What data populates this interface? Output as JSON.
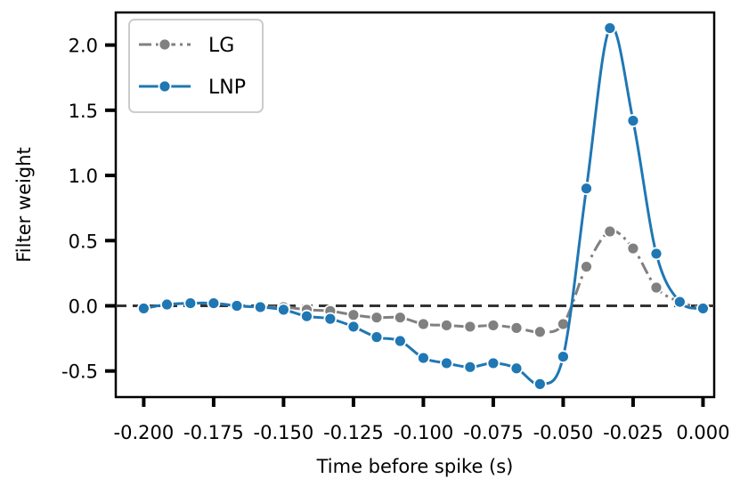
{
  "chart_data": {
    "type": "line",
    "title": "",
    "xlabel": "Time before spike (s)",
    "ylabel": "Filter weight",
    "xlim": [
      -0.21,
      0.004
    ],
    "ylim": [
      -0.7,
      2.25
    ],
    "xticks": [
      -0.2,
      -0.175,
      -0.15,
      -0.125,
      -0.1,
      -0.075,
      -0.05,
      -0.025,
      0.0
    ],
    "xtick_labels": [
      "-0.200",
      "-0.175",
      "-0.150",
      "-0.125",
      "-0.100",
      "-0.075",
      "-0.050",
      "-0.025",
      "0.000"
    ],
    "yticks": [
      -0.5,
      0.0,
      0.5,
      1.0,
      1.5,
      2.0
    ],
    "ytick_labels": [
      "-0.5",
      "0.0",
      "0.5",
      "1.0",
      "1.5",
      "2.0"
    ],
    "legend_position": "top-left",
    "zero_line": true,
    "x": [
      -0.2,
      -0.1917,
      -0.1833,
      -0.175,
      -0.1667,
      -0.1583,
      -0.15,
      -0.1417,
      -0.1333,
      -0.125,
      -0.1167,
      -0.1083,
      -0.1,
      -0.0917,
      -0.0833,
      -0.075,
      -0.0667,
      -0.0583,
      -0.05,
      -0.0417,
      -0.0333,
      -0.025,
      -0.0167,
      -0.0083,
      0.0
    ],
    "series": [
      {
        "name": "LG",
        "color": "#808080",
        "values": [
          -0.02,
          0.01,
          0.02,
          0.02,
          0.0,
          -0.01,
          -0.01,
          -0.03,
          -0.04,
          -0.07,
          -0.09,
          -0.09,
          -0.14,
          -0.15,
          -0.16,
          -0.15,
          -0.17,
          -0.2,
          -0.14,
          0.3,
          0.57,
          0.44,
          0.14,
          0.03,
          -0.02
        ]
      },
      {
        "name": "LNP",
        "color": "#1f77b4",
        "values": [
          -0.02,
          0.01,
          0.02,
          0.02,
          0.0,
          -0.01,
          -0.03,
          -0.08,
          -0.1,
          -0.16,
          -0.24,
          -0.27,
          -0.4,
          -0.44,
          -0.47,
          -0.44,
          -0.48,
          -0.6,
          -0.39,
          0.9,
          2.13,
          1.42,
          0.4,
          0.03,
          -0.02
        ]
      }
    ]
  }
}
